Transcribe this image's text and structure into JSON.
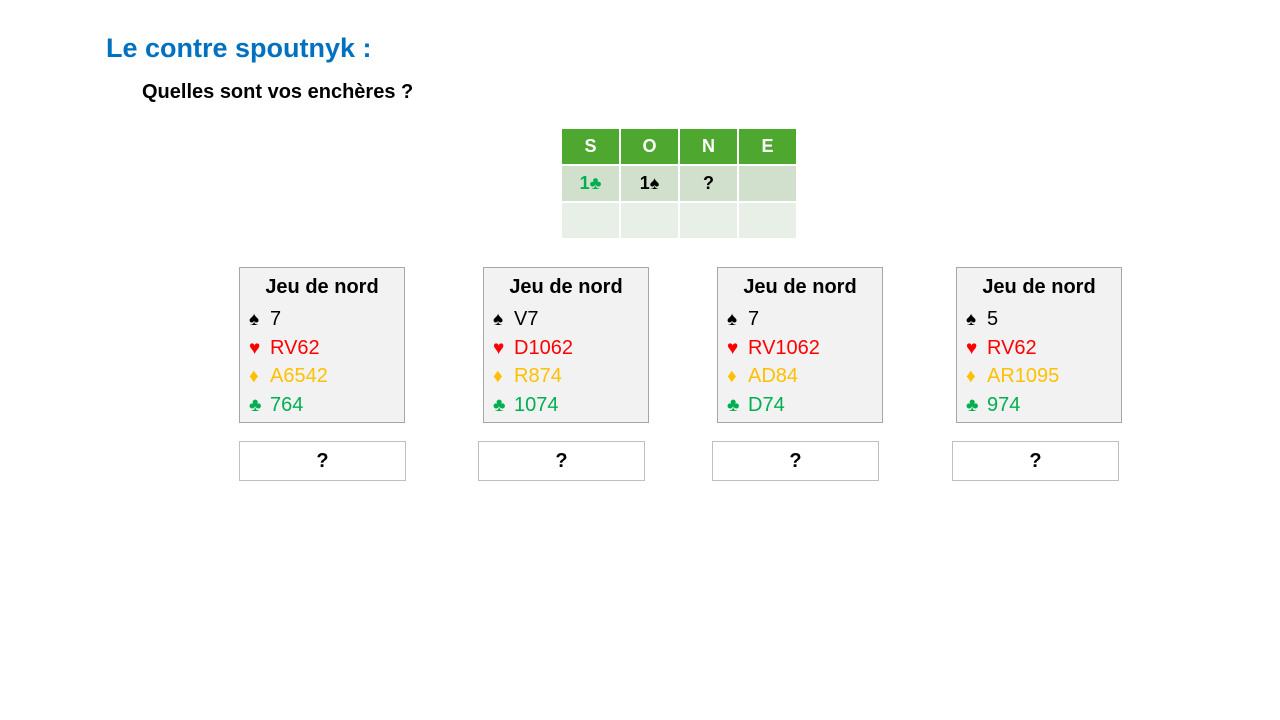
{
  "title": "Le contre spoutnyk :",
  "subtitle": "Quelles sont vos enchères ?",
  "bidding": {
    "headers": [
      "S",
      "O",
      "N",
      "E"
    ],
    "row1": [
      "1♣",
      "1♠",
      "?",
      ""
    ],
    "row2": [
      "",
      "",
      "",
      ""
    ]
  },
  "colors": {
    "title": "#0070c0",
    "spades": "#000000",
    "hearts": "#ff0000",
    "diamonds": "#ffc000",
    "clubs": "#00b050",
    "header": "#4ea72e"
  },
  "suits": {
    "spades": "♠",
    "hearts": "♥",
    "diamonds": "♦",
    "clubs": "♣"
  },
  "hands": [
    {
      "title": "Jeu de nord",
      "spades": "7",
      "hearts": "RV62",
      "diamonds": "A6542",
      "clubs": "764",
      "answer": "?"
    },
    {
      "title": "Jeu de nord",
      "spades": "V7",
      "hearts": "D1062",
      "diamonds": "R874",
      "clubs": "1074",
      "answer": "?"
    },
    {
      "title": "Jeu de nord",
      "spades": "7",
      "hearts": "RV1062",
      "diamonds": "AD84",
      "clubs": "D74",
      "answer": "?"
    },
    {
      "title": "Jeu de nord",
      "spades": "5",
      "hearts": "RV62",
      "diamonds": "AR1095",
      "clubs": "974",
      "answer": "?"
    }
  ]
}
